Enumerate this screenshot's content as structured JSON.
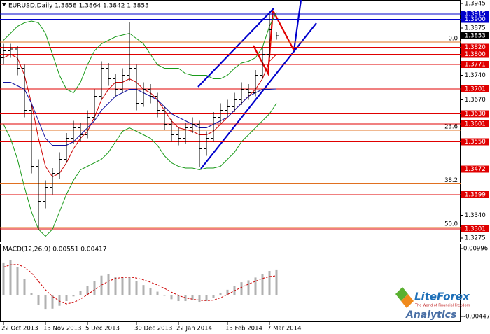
{
  "chart_data": {
    "type": "ohlc",
    "title": "EURUSD,Daily  1.3858 1.3864 1.3842 1.3853",
    "categories": [
      "22 Oct 2013",
      null,
      null,
      null,
      null,
      null,
      "13 Nov 2013",
      null,
      null,
      null,
      null,
      null,
      "5 Dec 2013",
      null,
      null,
      null,
      null,
      null,
      null,
      "30 Dec 2013",
      null,
      null,
      null,
      null,
      null,
      "22 Jan 2014",
      null,
      null,
      null,
      null,
      null,
      null,
      "13 Feb 2014",
      null,
      null,
      null,
      null,
      null,
      "7 Mar 2014",
      null
    ],
    "open": [
      1.379,
      1.381,
      1.3815,
      1.376,
      1.364,
      1.348,
      1.338,
      1.342,
      1.346,
      1.35,
      1.356,
      1.359,
      1.357,
      1.362,
      1.368,
      1.376,
      1.373,
      1.37,
      1.374,
      1.376,
      1.366,
      1.37,
      1.368,
      1.364,
      1.36,
      1.357,
      1.356,
      1.359,
      1.36,
      1.353,
      1.356,
      1.362,
      1.364,
      1.365,
      1.367,
      1.37,
      1.369,
      1.374,
      1.38,
      1.3858
    ],
    "high": [
      1.383,
      1.383,
      1.3825,
      1.377,
      1.3655,
      1.35,
      1.344,
      1.3475,
      1.352,
      1.3575,
      1.361,
      1.3605,
      1.364,
      1.37,
      1.378,
      1.3775,
      1.3745,
      1.376,
      1.3893,
      1.377,
      1.372,
      1.3715,
      1.369,
      1.365,
      1.3615,
      1.359,
      1.3605,
      1.362,
      1.361,
      1.358,
      1.3635,
      1.366,
      1.367,
      1.369,
      1.372,
      1.3715,
      1.3755,
      1.382,
      1.3915,
      1.3864
    ],
    "low": [
      1.377,
      1.379,
      1.374,
      1.362,
      1.346,
      1.33,
      1.336,
      1.34,
      1.3445,
      1.349,
      1.3545,
      1.355,
      1.356,
      1.361,
      1.367,
      1.371,
      1.368,
      1.369,
      1.3725,
      1.364,
      1.365,
      1.366,
      1.362,
      1.3585,
      1.355,
      1.354,
      1.3545,
      1.3575,
      1.3478,
      1.351,
      1.355,
      1.3605,
      1.3625,
      1.3635,
      1.3655,
      1.367,
      1.368,
      1.373,
      1.379,
      1.3842
    ],
    "close": [
      1.381,
      1.3815,
      1.376,
      1.364,
      1.348,
      1.338,
      1.342,
      1.346,
      1.35,
      1.356,
      1.359,
      1.357,
      1.362,
      1.368,
      1.376,
      1.373,
      1.37,
      1.374,
      1.376,
      1.366,
      1.37,
      1.368,
      1.364,
      1.36,
      1.357,
      1.356,
      1.359,
      1.36,
      1.353,
      1.356,
      1.362,
      1.364,
      1.365,
      1.367,
      1.37,
      1.369,
      1.374,
      1.38,
      1.387,
      1.3853
    ],
    "bar_color": "#000000",
    "overlays": [
      {
        "color": "#1a9a1a",
        "values": [
          1.384,
          1.386,
          1.388,
          1.389,
          1.3895,
          1.389,
          1.386,
          1.38,
          1.374,
          1.37,
          1.369,
          1.372,
          1.377,
          1.381,
          1.383,
          1.384,
          1.385,
          1.3855,
          1.386,
          1.3845,
          1.383,
          1.38,
          1.377,
          1.376,
          1.376,
          1.376,
          1.3745,
          1.374,
          1.374,
          1.374,
          1.373,
          1.373,
          1.374,
          1.376,
          1.3775,
          1.378,
          1.379,
          1.382,
          1.388,
          1.392
        ]
      },
      {
        "color": "#1a9a1a",
        "values": [
          1.36,
          1.356,
          1.35,
          1.342,
          1.335,
          1.33,
          1.328,
          1.33,
          1.335,
          1.34,
          1.344,
          1.347,
          1.348,
          1.349,
          1.35,
          1.352,
          1.355,
          1.358,
          1.359,
          1.358,
          1.357,
          1.356,
          1.354,
          1.351,
          1.349,
          1.348,
          1.3475,
          1.3475,
          1.347,
          1.3475,
          1.3475,
          1.348,
          1.35,
          1.352,
          1.355,
          1.357,
          1.359,
          1.361,
          1.363,
          1.366
        ]
      },
      {
        "color": "#cc0000",
        "values": [
          1.379,
          1.38,
          1.379,
          1.374,
          1.366,
          1.356,
          1.348,
          1.345,
          1.346,
          1.349,
          1.353,
          1.356,
          1.358,
          1.362,
          1.367,
          1.37,
          1.372,
          1.372,
          1.373,
          1.372,
          1.37,
          1.369,
          1.367,
          1.364,
          1.361,
          1.359,
          1.3585,
          1.358,
          1.357,
          1.357,
          1.358,
          1.36,
          1.362,
          1.364,
          1.366,
          1.368,
          1.37,
          1.373,
          1.378,
          1.38
        ]
      },
      {
        "color": "#1010a0",
        "values": [
          1.372,
          1.372,
          1.371,
          1.37,
          1.366,
          1.361,
          1.356,
          1.354,
          1.354,
          1.354,
          1.355,
          1.357,
          1.359,
          1.361,
          1.364,
          1.366,
          1.368,
          1.369,
          1.37,
          1.37,
          1.369,
          1.368,
          1.367,
          1.365,
          1.363,
          1.362,
          1.361,
          1.36,
          1.359,
          1.359,
          1.36,
          1.361,
          1.362,
          1.364,
          1.366,
          1.368,
          1.369,
          1.37,
          1.37,
          1.3701
        ]
      }
    ],
    "ylim": [
      1.3265,
      1.3955
    ],
    "yticks": [
      1.3945,
      1.3875,
      {
        "value": 1.374,
        "label": "1.3740"
      },
      {
        "value": 1.367,
        "label": "1.3670"
      },
      {
        "value": 1.334,
        "label": "1.3340"
      },
      1.3275
    ],
    "levels": [
      {
        "value": 1.3915,
        "label": "1.3915",
        "color": "#0000cc"
      },
      {
        "value": 1.39,
        "label": "1.3900",
        "color": "#0000cc"
      },
      {
        "value": 1.382,
        "label": "1.3820",
        "color": "#e00000"
      },
      {
        "value": 1.38,
        "label": "1.3800",
        "color": "#e00000"
      },
      {
        "value": 1.3771,
        "label": "1.3771",
        "color": "#e00000"
      },
      {
        "value": 1.3701,
        "label": "1.3701",
        "color": "#e00000"
      },
      {
        "value": 1.363,
        "label": "1.3630",
        "color": "#e00000"
      },
      {
        "value": 1.3601,
        "label": "1.3601",
        "color": "#e00000"
      },
      {
        "value": 1.355,
        "label": "1.3550",
        "color": "#e00000"
      },
      {
        "value": 1.3472,
        "label": "1.3472",
        "color": "#e00000"
      },
      {
        "value": 1.3399,
        "label": "1.3399",
        "color": "#e00000"
      },
      {
        "value": 1.3301,
        "label": "1.3301",
        "color": "#e00000"
      }
    ],
    "fib_color": "#e07020",
    "fib_levels": [
      {
        "value": 1.3835,
        "label": "0.0"
      },
      {
        "value": 1.3583,
        "label": "23.6"
      },
      {
        "value": 1.343,
        "label": "38.2"
      },
      {
        "value": 1.3305,
        "label": "50.0"
      }
    ],
    "current_price": 1.3853,
    "macd": {
      "label": "MACD(12,26,9) 0.00551 0.00417",
      "ylim": [
        -0.00447,
        0.00996
      ],
      "yticks": [
        0.00996,
        -0.00447
      ],
      "hist_color": "#b0b0b0",
      "signal_color": "#cc0000",
      "histogram": [
        0.007,
        0.0075,
        0.006,
        0.0035,
        0.0005,
        -0.002,
        -0.003,
        -0.0028,
        -0.0022,
        -0.0012,
        -0.0002,
        0.001,
        0.002,
        0.003,
        0.0042,
        0.0045,
        0.004,
        0.0038,
        0.004,
        0.003,
        0.0022,
        0.0015,
        0.0008,
        0.0,
        -0.0008,
        -0.0012,
        -0.0012,
        -0.001,
        -0.0015,
        -0.0012,
        -0.0005,
        0.0005,
        0.0012,
        0.002,
        0.0028,
        0.0032,
        0.0038,
        0.0045,
        0.0052,
        0.00551
      ],
      "signal": [
        0.006,
        0.0065,
        0.0066,
        0.006,
        0.0048,
        0.003,
        0.0012,
        -0.0002,
        -0.0012,
        -0.0018,
        -0.0015,
        -0.0008,
        0.0002,
        0.0012,
        0.0022,
        0.003,
        0.0036,
        0.0038,
        0.0039,
        0.0037,
        0.0033,
        0.0028,
        0.0022,
        0.0015,
        0.0007,
        0.0,
        -0.0005,
        -0.0008,
        -0.001,
        -0.0011,
        -0.001,
        -0.0005,
        0.0002,
        0.001,
        0.0017,
        0.0024,
        0.003,
        0.0036,
        0.004,
        0.00417
      ]
    }
  },
  "logo": {
    "name": "LiteForex",
    "tagline": "The World of Financial Freedom",
    "sub": "Analytics"
  }
}
